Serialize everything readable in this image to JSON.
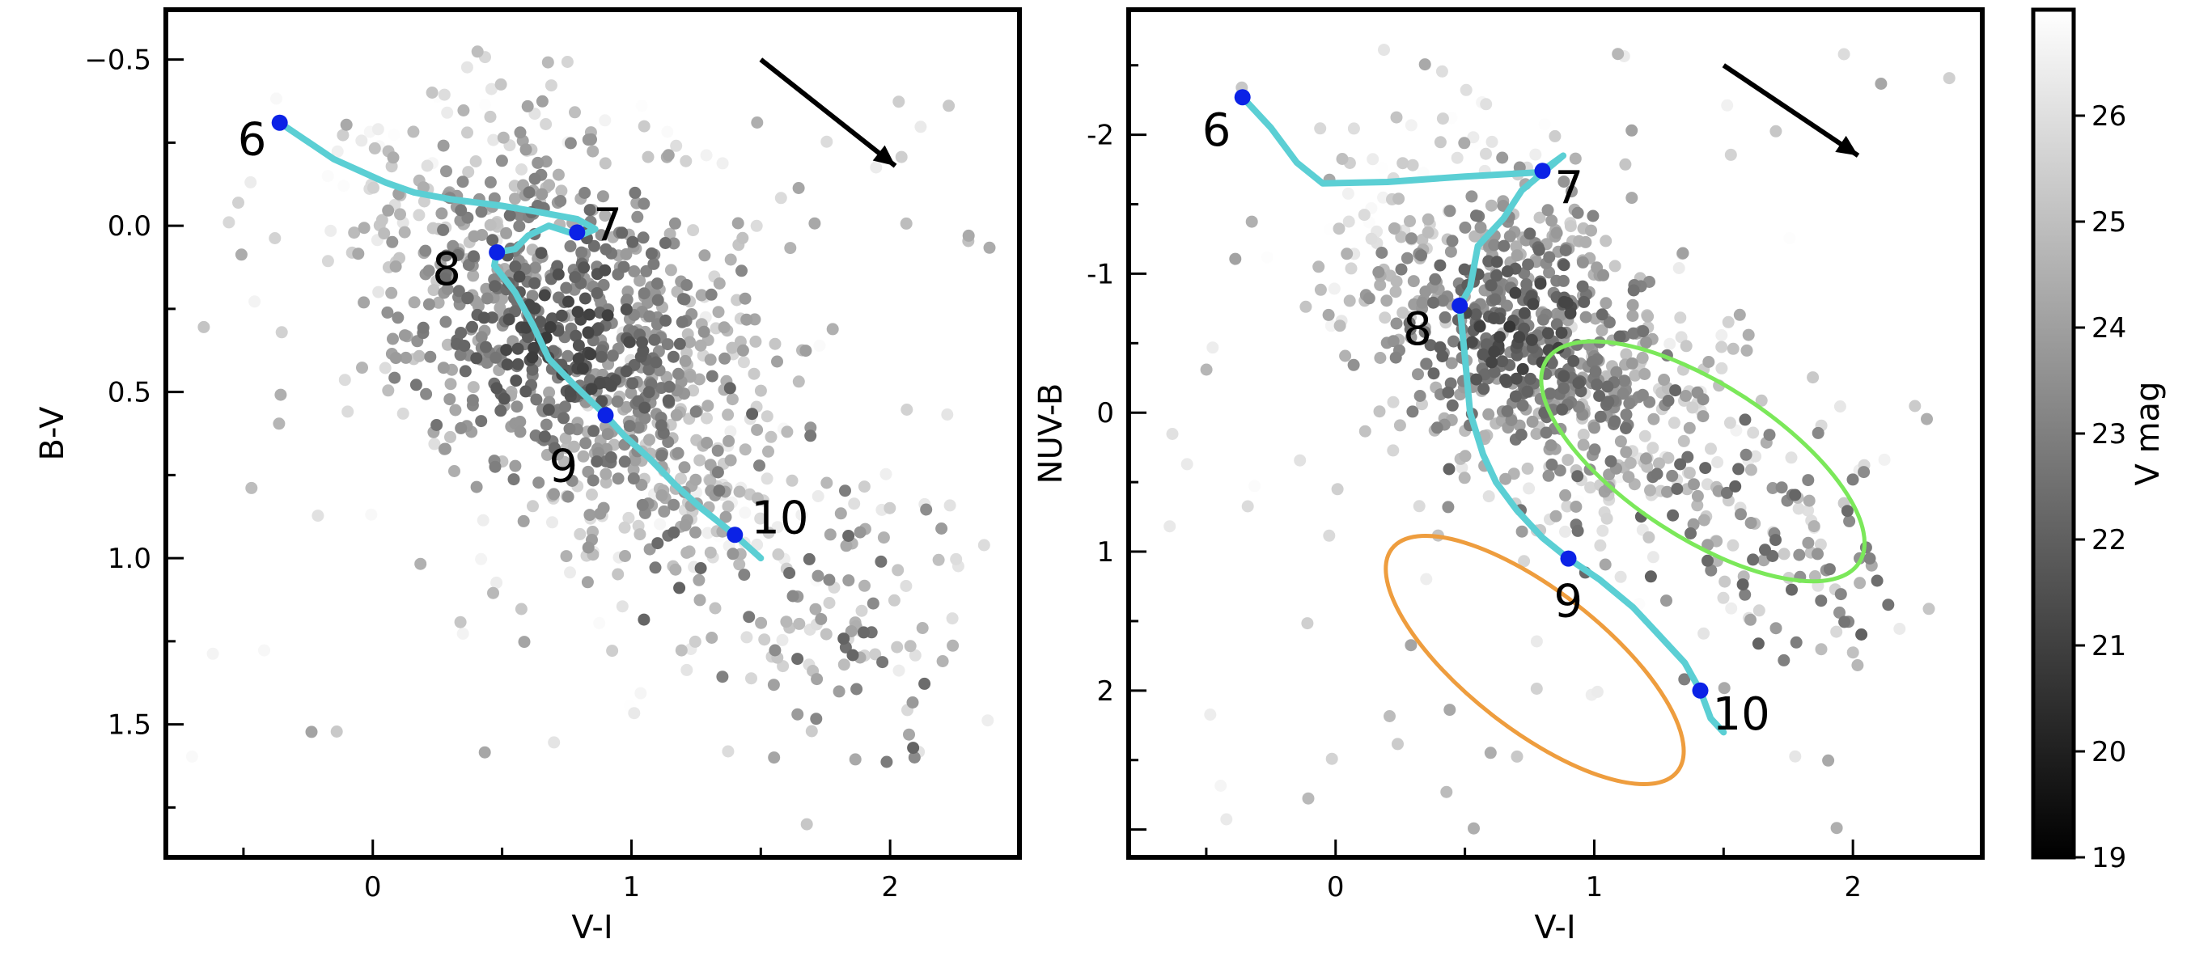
{
  "chart_data": [
    {
      "type": "scatter",
      "panel": "left",
      "xlabel": "V-I",
      "ylabel": "B-V",
      "xlim": [
        -0.8,
        2.5
      ],
      "ylim": [
        1.9,
        -0.65
      ],
      "y_inverted": true,
      "x_ticks": [
        0,
        1,
        2
      ],
      "x_tick_labels": [
        "0",
        "1",
        "2"
      ],
      "y_ticks": [
        -0.5,
        0.0,
        0.5,
        1.0,
        1.5
      ],
      "y_tick_labels": [
        "−0.5",
        "0.0",
        "0.5",
        "1.0",
        "1.5"
      ],
      "track": {
        "color": "#5bcfd4",
        "points": [
          [
            -0.36,
            -0.31
          ],
          [
            -0.15,
            -0.2
          ],
          [
            0.05,
            -0.13
          ],
          [
            0.16,
            -0.1
          ],
          [
            0.3,
            -0.08
          ],
          [
            0.5,
            -0.06
          ],
          [
            0.65,
            -0.04
          ],
          [
            0.79,
            -0.02
          ],
          [
            0.86,
            0.01
          ],
          [
            0.8,
            0.03
          ],
          [
            0.68,
            0.0
          ],
          [
            0.6,
            0.03
          ],
          [
            0.55,
            0.07
          ],
          [
            0.48,
            0.08
          ],
          [
            0.47,
            0.12
          ],
          [
            0.55,
            0.2
          ],
          [
            0.62,
            0.3
          ],
          [
            0.68,
            0.4
          ],
          [
            0.78,
            0.48
          ],
          [
            0.9,
            0.57
          ],
          [
            0.97,
            0.63
          ],
          [
            1.07,
            0.7
          ],
          [
            1.17,
            0.78
          ],
          [
            1.27,
            0.85
          ],
          [
            1.4,
            0.93
          ],
          [
            1.5,
            1.0
          ]
        ]
      },
      "age_points": [
        {
          "label": "6",
          "x": -0.36,
          "y": -0.31
        },
        {
          "label": "7",
          "x": 0.79,
          "y": 0.02
        },
        {
          "label": "8",
          "x": 0.48,
          "y": 0.08
        },
        {
          "label": "9",
          "x": 0.9,
          "y": 0.57
        },
        {
          "label": "10",
          "x": 1.4,
          "y": 0.93
        }
      ],
      "reddening_vector": {
        "from": [
          1.5,
          -0.5
        ],
        "to": [
          2.02,
          -0.18
        ]
      },
      "cluster": {
        "center_x": 0.75,
        "center_y": 0.33,
        "spread_x": 0.42,
        "spread_y": 0.3,
        "count": 900
      },
      "tail": {
        "from": [
          1.0,
          0.6
        ],
        "to": [
          2.1,
          1.4
        ],
        "count": 180
      }
    },
    {
      "type": "scatter",
      "panel": "right",
      "xlabel": "V-I",
      "ylabel": "NUV-B",
      "xlim": [
        -0.8,
        2.5
      ],
      "ylim": [
        3.2,
        -2.9
      ],
      "y_inverted": true,
      "x_ticks": [
        0,
        1,
        2
      ],
      "x_tick_labels": [
        "0",
        "1",
        "2"
      ],
      "y_ticks": [
        -2,
        -1,
        0,
        1,
        2
      ],
      "y_tick_labels": [
        "-2",
        "-1",
        "0",
        "1",
        "2"
      ],
      "track": {
        "color": "#5bcfd4",
        "points": [
          [
            -0.36,
            -2.27
          ],
          [
            -0.25,
            -2.05
          ],
          [
            -0.15,
            -1.8
          ],
          [
            -0.05,
            -1.65
          ],
          [
            0.2,
            -1.66
          ],
          [
            0.5,
            -1.7
          ],
          [
            0.79,
            -1.73
          ],
          [
            0.88,
            -1.85
          ],
          [
            0.72,
            -1.6
          ],
          [
            0.65,
            -1.4
          ],
          [
            0.55,
            -1.2
          ],
          [
            0.52,
            -0.9
          ],
          [
            0.48,
            -0.77
          ],
          [
            0.5,
            -0.4
          ],
          [
            0.52,
            0.0
          ],
          [
            0.57,
            0.3
          ],
          [
            0.62,
            0.5
          ],
          [
            0.7,
            0.7
          ],
          [
            0.8,
            0.9
          ],
          [
            0.9,
            1.05
          ],
          [
            1.02,
            1.2
          ],
          [
            1.15,
            1.4
          ],
          [
            1.25,
            1.6
          ],
          [
            1.35,
            1.8
          ],
          [
            1.41,
            2.0
          ],
          [
            1.45,
            2.2
          ],
          [
            1.5,
            2.3
          ]
        ]
      },
      "age_points": [
        {
          "label": "6",
          "x": -0.36,
          "y": -2.27
        },
        {
          "label": "7",
          "x": 0.8,
          "y": -1.74
        },
        {
          "label": "8",
          "x": 0.48,
          "y": -0.77
        },
        {
          "label": "9",
          "x": 0.9,
          "y": 1.05
        },
        {
          "label": "10",
          "x": 1.41,
          "y": 2.0
        }
      ],
      "reddening_vector": {
        "from": [
          1.5,
          -2.5
        ],
        "to": [
          2.02,
          -1.85
        ]
      },
      "ellipses": [
        {
          "name": "green",
          "color": "#7be85a",
          "cx": 1.42,
          "cy": 0.35,
          "rx": 0.72,
          "ry": 0.55,
          "angle_deg": 33
        },
        {
          "name": "orange",
          "color": "#ee9d3e",
          "cx": 0.77,
          "cy": 1.78,
          "rx": 0.7,
          "ry": 0.5,
          "angle_deg": 38
        }
      ],
      "cluster": {
        "center_x": 0.72,
        "center_y": -0.6,
        "spread_x": 0.35,
        "spread_y": 0.55,
        "count": 650
      },
      "tail": {
        "from": [
          0.8,
          0.0
        ],
        "to": [
          2.0,
          1.2
        ],
        "count": 200
      }
    }
  ],
  "colorbar": {
    "label": "V mag",
    "range": [
      19,
      27
    ],
    "ticks": [
      19,
      20,
      21,
      22,
      23,
      24,
      25,
      26
    ],
    "tick_labels": [
      "19",
      "20",
      "21",
      "22",
      "23",
      "24",
      "25",
      "26"
    ],
    "color_min": "#000000",
    "color_max": "#ffffff"
  },
  "colors": {
    "age_marker": "#0b22e6",
    "vector": "#000000"
  }
}
